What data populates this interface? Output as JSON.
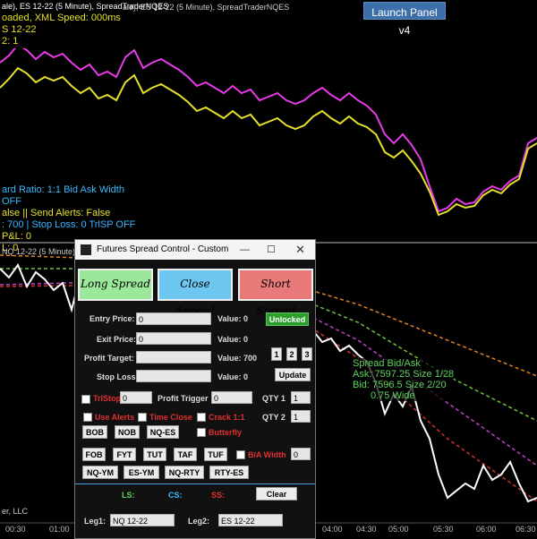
{
  "chart": {
    "header_line1": "ale), ES 12-22 (5 Minute), SpreadTraderNQES",
    "header_line2": "oaded,  XML Speed: 000ms",
    "header_line3": "S 12-22",
    "header_line4": "2: 1",
    "info_line1": "ard Ratio: 1:1  Bid Ask Width OFF",
    "info_line2": "alse  ||  Send Alerts: False",
    "info_line3": ": 700  |  Stop Loss: 0  TrlSP OFF",
    "info_line4": "P&L: 0",
    "info_line5": "L: 0",
    "lower_header": "NQ 12-22 (5 Minute))",
    "copyright": "er, LLC",
    "time_ticks": [
      "00:30",
      "01:00",
      "04:00",
      "04:30",
      "05:00",
      "05:30",
      "06:00",
      "06:30"
    ],
    "colors": {
      "magenta": "#e83ae8",
      "yellow": "#e5e02a",
      "white": "#ffffff",
      "orange_dash": "#e08020",
      "green_dash": "#70c040",
      "red_dash": "#d03030"
    }
  },
  "launch_panel": {
    "label": "Launch Panel v4"
  },
  "spread_box": {
    "title": "Spread Bid/Ask",
    "ask": "Ask: 7597.25  Size 1/28",
    "bid": "Bid: 7596.5  Size 2/20",
    "width": "0.75 Wide"
  },
  "dialog": {
    "title": "Futures Spread Control - Custom",
    "long_spread": "Long Spread",
    "close_spread": "Close Spread",
    "short_spread": "Short Spread",
    "entry_label": "Entry Price:",
    "entry_value": "0",
    "entry_val_text": "Value: 0",
    "unlocked": "Unlocked",
    "exit_label": "Exit Price:",
    "exit_value": "0",
    "exit_val_text": "Value: 0",
    "profit_label": "Profit Target:",
    "profit_value": "",
    "profit_val_text": "Value: 700",
    "qty_btns": [
      "1",
      "2",
      "3"
    ],
    "stop_label": "Stop Loss:",
    "stop_value": "",
    "stop_val_text": "Value: 0",
    "update": "Update",
    "trlstop_label": "TrlStop",
    "trlstop_value": "0",
    "profit_trigger_label": "Profit Trigger",
    "profit_trigger_value": "0",
    "qty1_label": "QTY 1",
    "qty1_value": "1",
    "use_alerts": "Use Alerts",
    "time_close": "Time Close",
    "crack": "Crack 1:1",
    "qty2_label": "QTY 2",
    "qty2_value": "1",
    "row1_btns": [
      "BOB",
      "NOB",
      "NQ-ES"
    ],
    "butterfly": "Butterfly",
    "row2_btns": [
      "FOB",
      "FYT",
      "TUT",
      "TAF",
      "TUF"
    ],
    "ba_width": "B/A Width",
    "ba_width_value": "0",
    "row3_btns": [
      "NQ-YM",
      "ES-YM",
      "NQ-RTY",
      "RTY-ES"
    ],
    "ls": "LS:",
    "cs": "CS:",
    "ss": "SS:",
    "clear": "Clear",
    "leg1_label": "Leg1:",
    "leg1_value": "NQ 12-22",
    "leg2_label": "Leg2:",
    "leg2_value": "ES 12-22",
    "colors": {
      "long": "#9be89b",
      "close": "#6cc6f0",
      "short": "#e87a7a",
      "unlocked_bg": "#2e9e2e"
    }
  }
}
